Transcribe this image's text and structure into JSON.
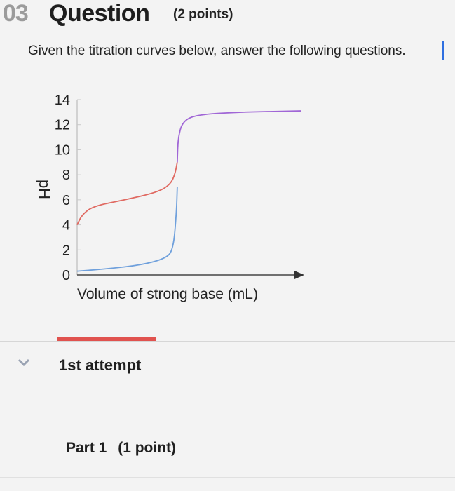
{
  "question": {
    "number": "03",
    "word": "Question",
    "points": "(2 points)",
    "prompt": "Given the titration curves below, answer the following questions."
  },
  "chart_data": {
    "type": "line",
    "xlabel": "Volume of strong base (mL)",
    "ylabel": "pH",
    "ylim": [
      0,
      14
    ],
    "yticks": [
      "14",
      "12",
      "10",
      "8",
      "6",
      "4",
      "2",
      "0"
    ],
    "x_axis_arrow": true,
    "series": [
      {
        "color": "#6fa0dc",
        "points": [
          [
            0,
            0.3
          ],
          [
            20,
            0.5
          ],
          [
            40,
            0.8
          ],
          [
            55,
            1.3
          ],
          [
            60,
            2.0
          ],
          [
            62,
            5.0
          ],
          [
            62.5,
            7.0
          ]
        ]
      },
      {
        "color": "#e06a62",
        "points": [
          [
            0,
            4.0
          ],
          [
            3,
            4.8
          ],
          [
            10,
            5.5
          ],
          [
            30,
            6.0
          ],
          [
            50,
            6.6
          ],
          [
            58,
            7.2
          ],
          [
            61,
            8.0
          ],
          [
            62.5,
            9.0
          ]
        ]
      },
      {
        "color": "#a066d6",
        "points": [
          [
            62.5,
            9.0
          ],
          [
            63,
            11.0
          ],
          [
            66,
            12.3
          ],
          [
            75,
            12.8
          ],
          [
            100,
            13.0
          ],
          [
            140,
            13.1
          ]
        ]
      }
    ]
  },
  "attempt": {
    "label": "1st attempt"
  },
  "part": {
    "label": "Part 1",
    "points": "(1 point)"
  },
  "colors": {
    "accent_red": "#e0524e",
    "chevron": "#9aa3b3"
  }
}
